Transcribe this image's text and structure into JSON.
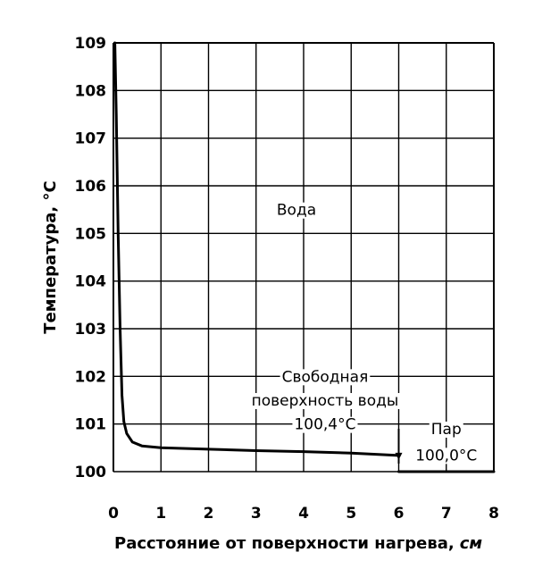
{
  "chart_data": {
    "type": "line",
    "xlabel": "Расстояние от поверхности нагрева,",
    "xlabel_unit": "см",
    "ylabel": "Температура, °C",
    "xlim": [
      0,
      8
    ],
    "ylim": [
      100,
      109
    ],
    "x_ticks": [
      0,
      1,
      2,
      3,
      4,
      5,
      6,
      7,
      8
    ],
    "y_ticks": [
      100,
      101,
      102,
      103,
      104,
      105,
      106,
      107,
      108,
      109
    ],
    "grid": true,
    "series": [
      {
        "x": [
          0.03,
          0.06,
          0.1,
          0.14,
          0.18,
          0.22,
          0.28,
          0.4,
          0.6,
          1.0,
          2.0,
          3.0,
          4.0,
          5.0,
          6.0
        ],
        "y": [
          109.0,
          107.5,
          105.0,
          103.0,
          101.6,
          101.05,
          100.8,
          100.62,
          100.54,
          100.5,
          100.47,
          100.44,
          100.42,
          100.39,
          100.34
        ]
      },
      {
        "x": [
          6.0,
          8.0
        ],
        "y": [
          100.0,
          100.0
        ]
      }
    ],
    "annotations": [
      {
        "id": "water",
        "text": "Вода",
        "x": 3.85,
        "y": 105.5
      },
      {
        "id": "surface-1",
        "text": "Свободная",
        "x": 4.45,
        "y": 102.0
      },
      {
        "id": "surface-2",
        "text": "поверхность воды",
        "x": 4.45,
        "y": 101.5
      },
      {
        "id": "surface-3",
        "text": "100,4°C",
        "x": 4.45,
        "y": 101.0
      },
      {
        "id": "steam-1",
        "text": "Пар",
        "x": 7.0,
        "y": 100.9
      },
      {
        "id": "steam-2",
        "text": "100,0°C",
        "x": 7.0,
        "y": 100.35
      }
    ],
    "boundary_arrow": {
      "x": 6.0,
      "from_y": 100.9,
      "to_y": 100.32
    }
  }
}
